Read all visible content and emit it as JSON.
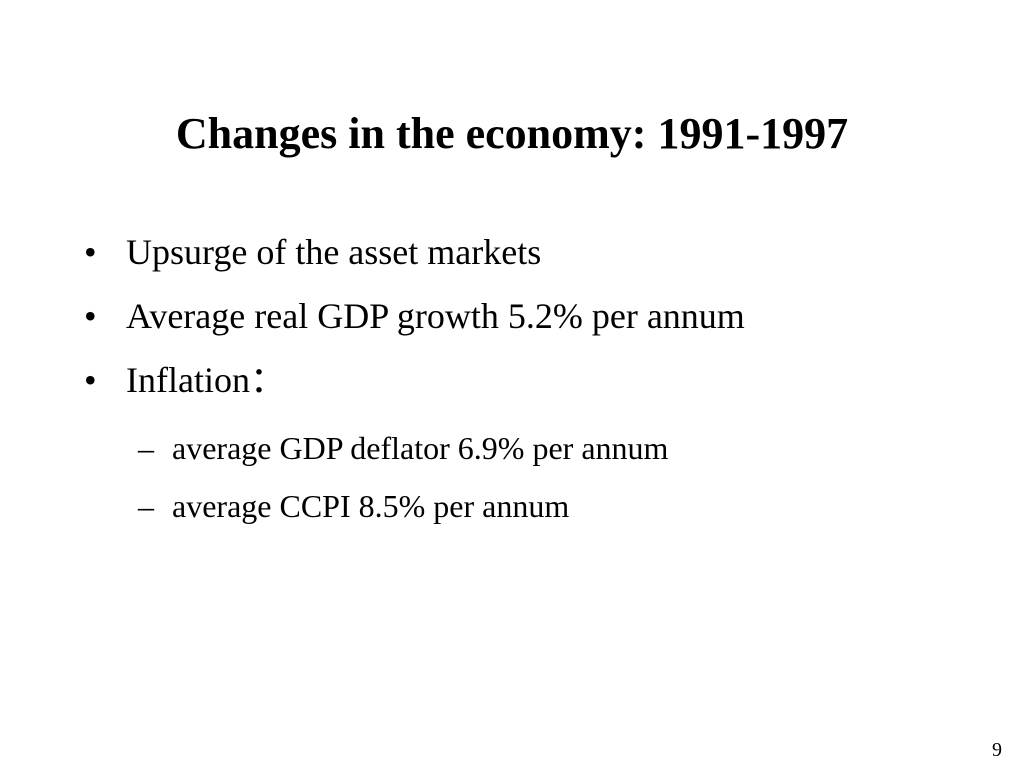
{
  "slide": {
    "title": "Changes in the economy: 1991-1997",
    "bullet_symbol": "•",
    "bullets": [
      {
        "text": "Upsurge of the asset markets"
      },
      {
        "text": "Average real GDP growth 5.2% per annum"
      },
      {
        "text": "Inflation："
      }
    ],
    "sub_symbol": "–",
    "sub_bullets": [
      {
        "text": "average GDP deflator 6.9% per annum"
      },
      {
        "text": "average CCPI 8.5% per annum"
      }
    ],
    "page_number": "9"
  }
}
